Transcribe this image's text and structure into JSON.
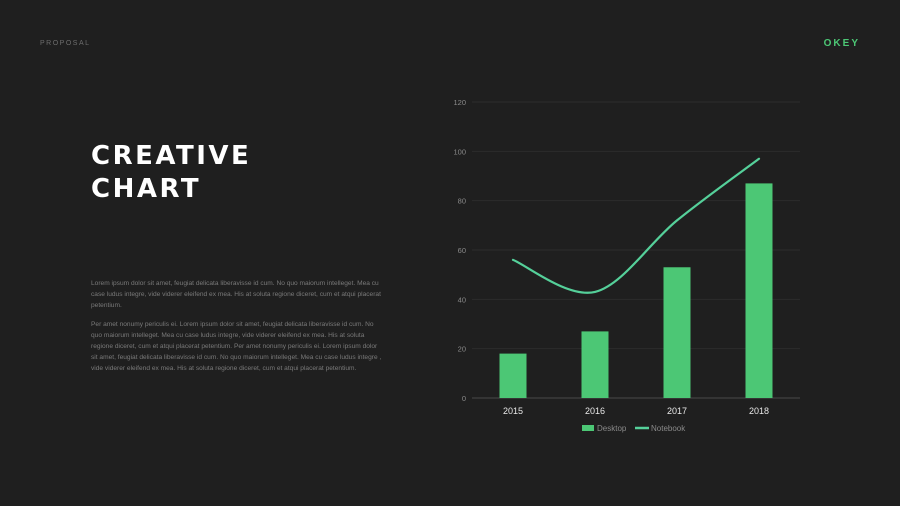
{
  "header": {
    "left": "PROPOSAL",
    "brand": "OKEY"
  },
  "title": {
    "line1": "CREATIVE",
    "line2": "CHART"
  },
  "paragraphs": [
    "Lorem ipsum dolor sit amet, feugiat delicata liberavisse id cum. No quo maiorum intelleget. Mea cu case ludus integre, vide viderer eleifend ex mea. His at soluta regione diceret, cum et atqui placerat petentium.",
    "Per amet nonumy periculis ei. Lorem ipsum dolor sit amet, feugiat delicata liberavisse id cum. No quo maiorum intelleget. Mea cu case ludus integre, vide viderer eleifend ex mea. His at soluta regione diceret, cum et atqui placerat petentium. Per amet nonumy periculis ei. Lorem ipsum dolor sit amet, feugiat delicata liberavisse id cum. No quo maiorum intelleget. Mea cu case ludus integre , vide viderer eleifend ex mea. His at soluta regione diceret, cum et atqui placerat petentium."
  ],
  "colors": {
    "accent": "#4cc775",
    "background": "#1f1f1f"
  },
  "chart_data": {
    "type": "bar",
    "categories": [
      "2015",
      "2016",
      "2017",
      "2018"
    ],
    "series": [
      {
        "name": "Desktop",
        "type": "bar",
        "values": [
          18,
          27,
          53,
          87
        ]
      },
      {
        "name": "Notebook",
        "type": "line",
        "values": [
          56,
          43,
          72,
          97
        ]
      }
    ],
    "ylim": [
      0,
      120
    ],
    "yticks": [
      0,
      20,
      40,
      60,
      80,
      100,
      120
    ],
    "grid": true,
    "legend": "bottom"
  }
}
